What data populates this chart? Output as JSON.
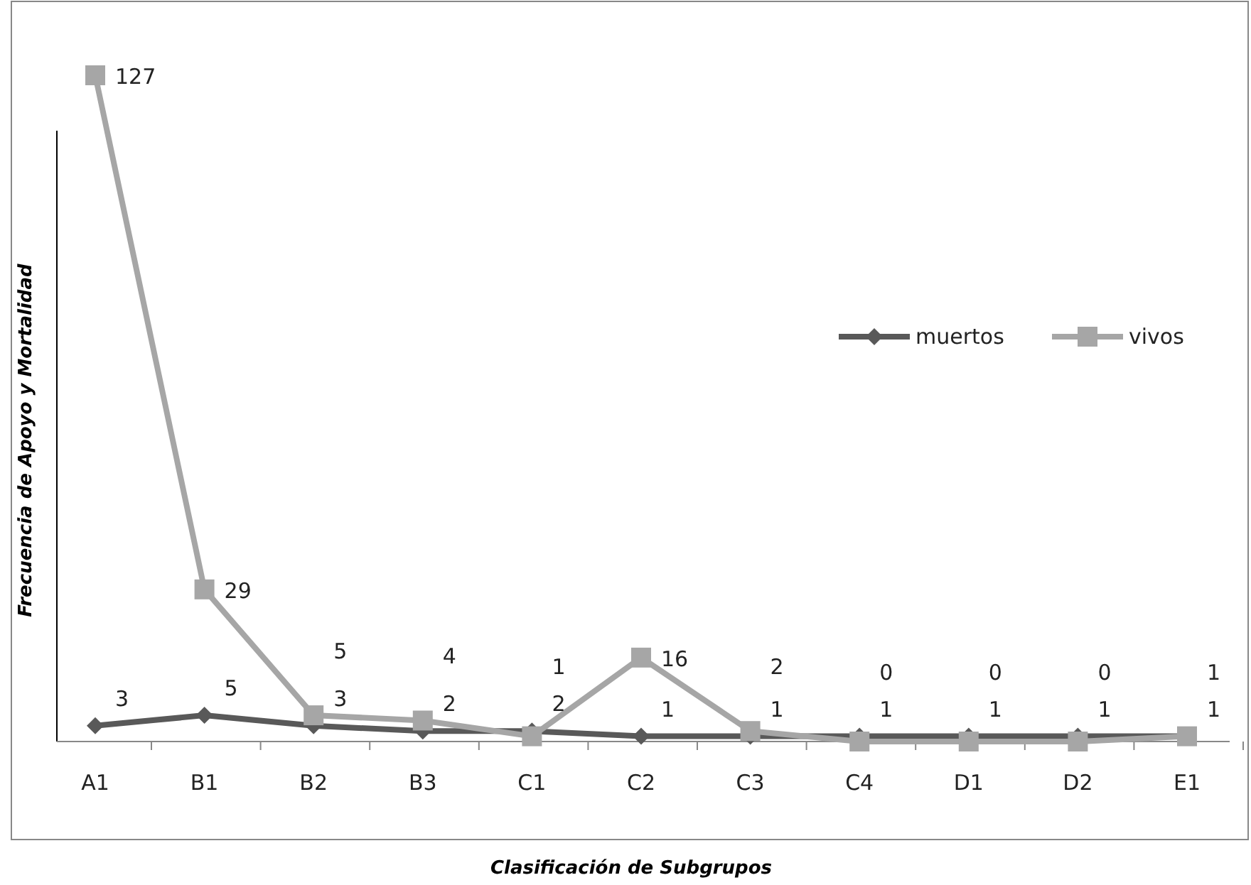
{
  "chart_data": {
    "type": "line",
    "xlabel": "Clasificación de Subgrupos",
    "ylabel": "Frecuencia de Apoyo y Mortalidad",
    "categories": [
      "A1",
      "B1",
      "B2",
      "B3",
      "C1",
      "C2",
      "C3",
      "C4",
      "D1",
      "D2",
      "E1"
    ],
    "series": [
      {
        "name": "muertos",
        "color": "#595959",
        "marker": "diamond",
        "values": [
          3,
          5,
          3,
          2,
          2,
          1,
          1,
          1,
          1,
          1,
          1
        ]
      },
      {
        "name": "vivos",
        "color": "#a6a6a6",
        "marker": "square",
        "values": [
          127,
          29,
          5,
          4,
          1,
          16,
          2,
          0,
          0,
          0,
          1
        ]
      }
    ],
    "data_labels": true,
    "legend": "right",
    "tick_labels": "x"
  }
}
